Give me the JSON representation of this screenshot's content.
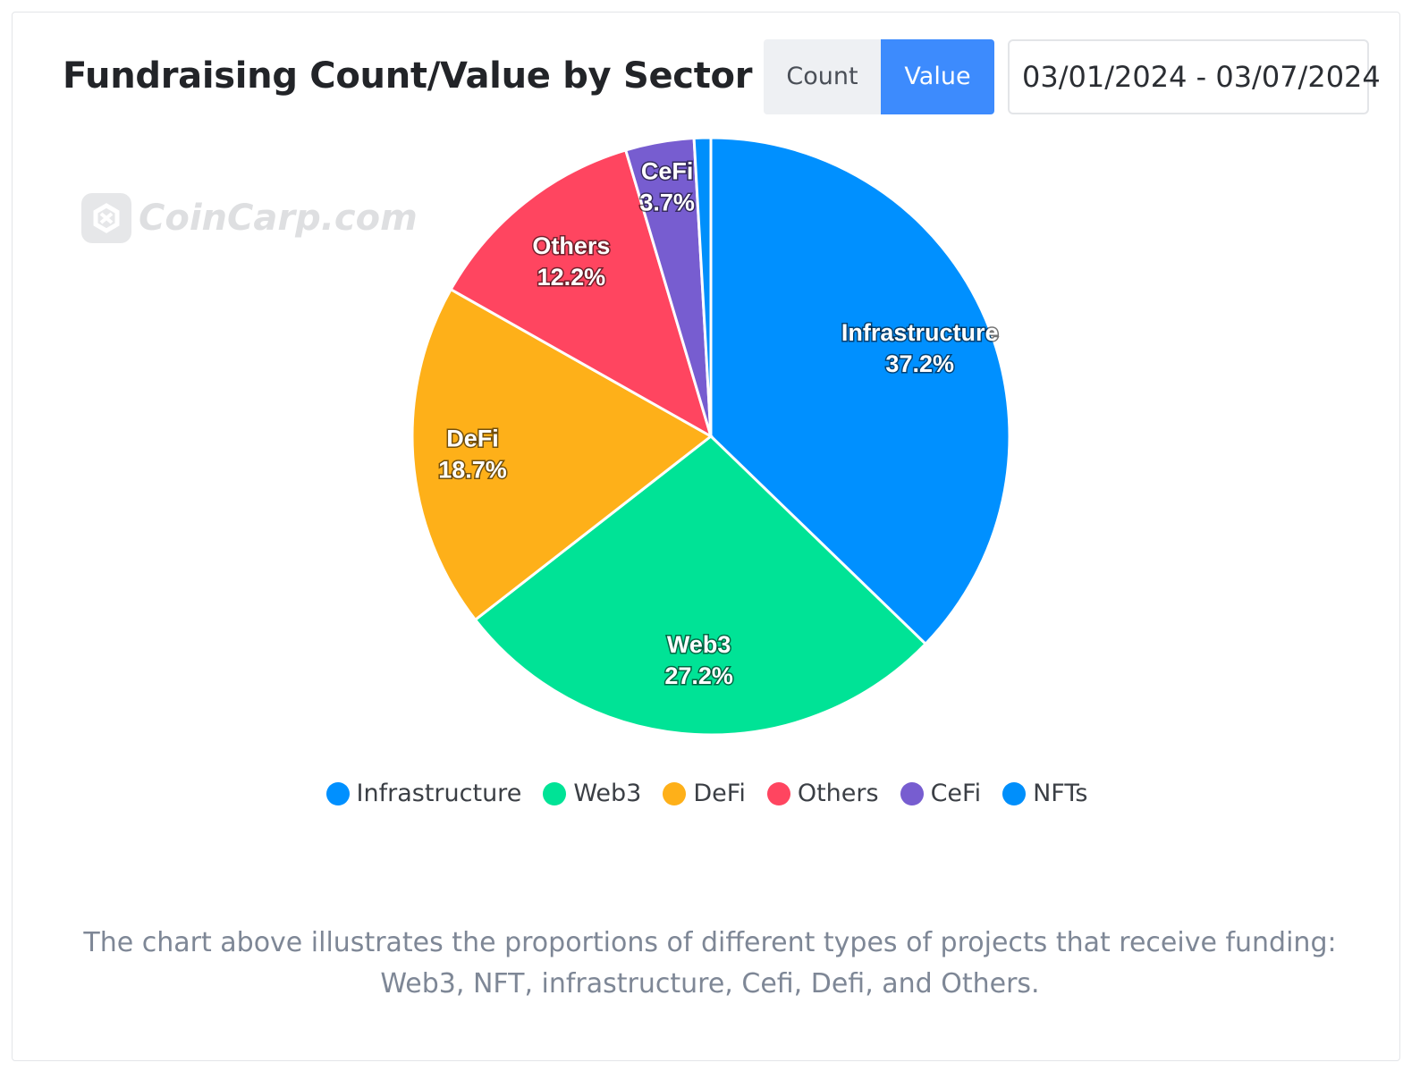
{
  "header": {
    "title": "Fundraising Count/Value by Sector",
    "toggle": {
      "count_label": "Count",
      "value_label": "Value",
      "selected": "Value"
    },
    "date_range": "03/01/2024 - 03/07/2024"
  },
  "watermark": {
    "text": "CoinCarp.com"
  },
  "chart_data": {
    "type": "pie",
    "title": "Fundraising Count/Value by Sector",
    "categories": [
      "Infrastructure",
      "Web3",
      "DeFi",
      "Others",
      "CeFi",
      "NFTs"
    ],
    "values": [
      37.2,
      27.2,
      18.7,
      12.2,
      3.7,
      0.9
    ],
    "unit": "%",
    "colors": [
      "#0090ff",
      "#00e396",
      "#feb019",
      "#ff4560",
      "#775dd0",
      "#008ffb"
    ],
    "slice_labels": [
      {
        "name": "Infrastructure",
        "pct": "37.2%"
      },
      {
        "name": "Web3",
        "pct": "27.2%"
      },
      {
        "name": "DeFi",
        "pct": "18.7%"
      },
      {
        "name": "Others",
        "pct": "12.2%"
      },
      {
        "name": "CeFi",
        "pct": "3.7%"
      },
      {
        "name": "NFTs",
        "pct": ""
      }
    ],
    "legend_position": "bottom-center"
  },
  "description": "The chart above illustrates the proportions of different types of projects that receive funding: Web3, NFT, infrastructure, Cefi, Defi, and Others."
}
